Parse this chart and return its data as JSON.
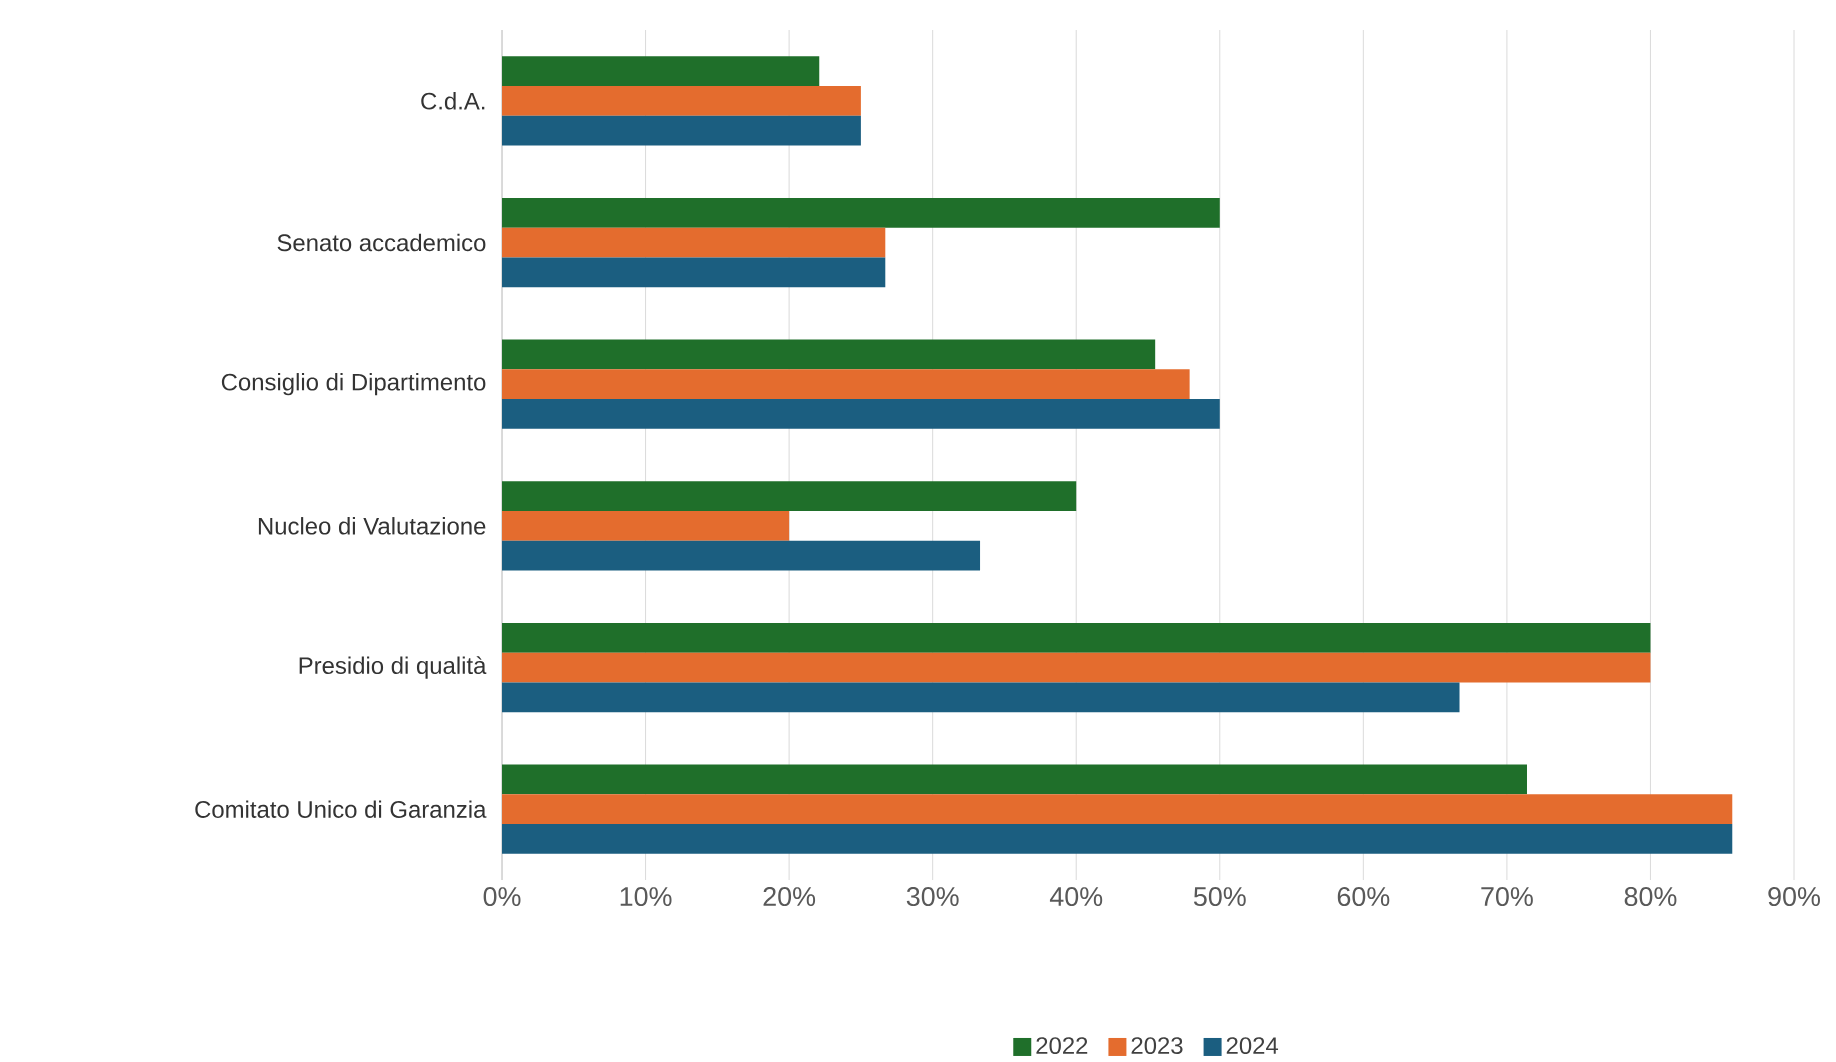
{
  "chart_data": {
    "type": "bar",
    "orientation": "horizontal",
    "categories": [
      "C.d.A.",
      "Senato accademico",
      "Consiglio di Dipartimento",
      "Nucleo di Valutazione",
      "Presidio di qualità",
      "Comitato Unico di Garanzia"
    ],
    "series": [
      {
        "name": "2022",
        "color": "#1f6f2a",
        "values": [
          22.1,
          50,
          45.5,
          40,
          80,
          71.4
        ]
      },
      {
        "name": "2023",
        "color": "#e46c2e",
        "values": [
          25,
          26.7,
          47.9,
          20,
          80,
          85.7
        ]
      },
      {
        "name": "2024",
        "color": "#1b5e80",
        "values": [
          25,
          26.7,
          50,
          33.3,
          66.7,
          85.7
        ]
      }
    ],
    "xlim": [
      0,
      90
    ],
    "xticks": [
      {
        "value": 0,
        "label": "0%"
      },
      {
        "value": 10,
        "label": "10%"
      },
      {
        "value": 20,
        "label": "20%"
      },
      {
        "value": 30,
        "label": "30%"
      },
      {
        "value": 40,
        "label": "40%"
      },
      {
        "value": 50,
        "label": "50%"
      },
      {
        "value": 60,
        "label": "60%"
      },
      {
        "value": 70,
        "label": "70%"
      },
      {
        "value": 80,
        "label": "80%"
      },
      {
        "value": 90,
        "label": "90%"
      }
    ],
    "grid": "x",
    "legend": "bottom"
  }
}
